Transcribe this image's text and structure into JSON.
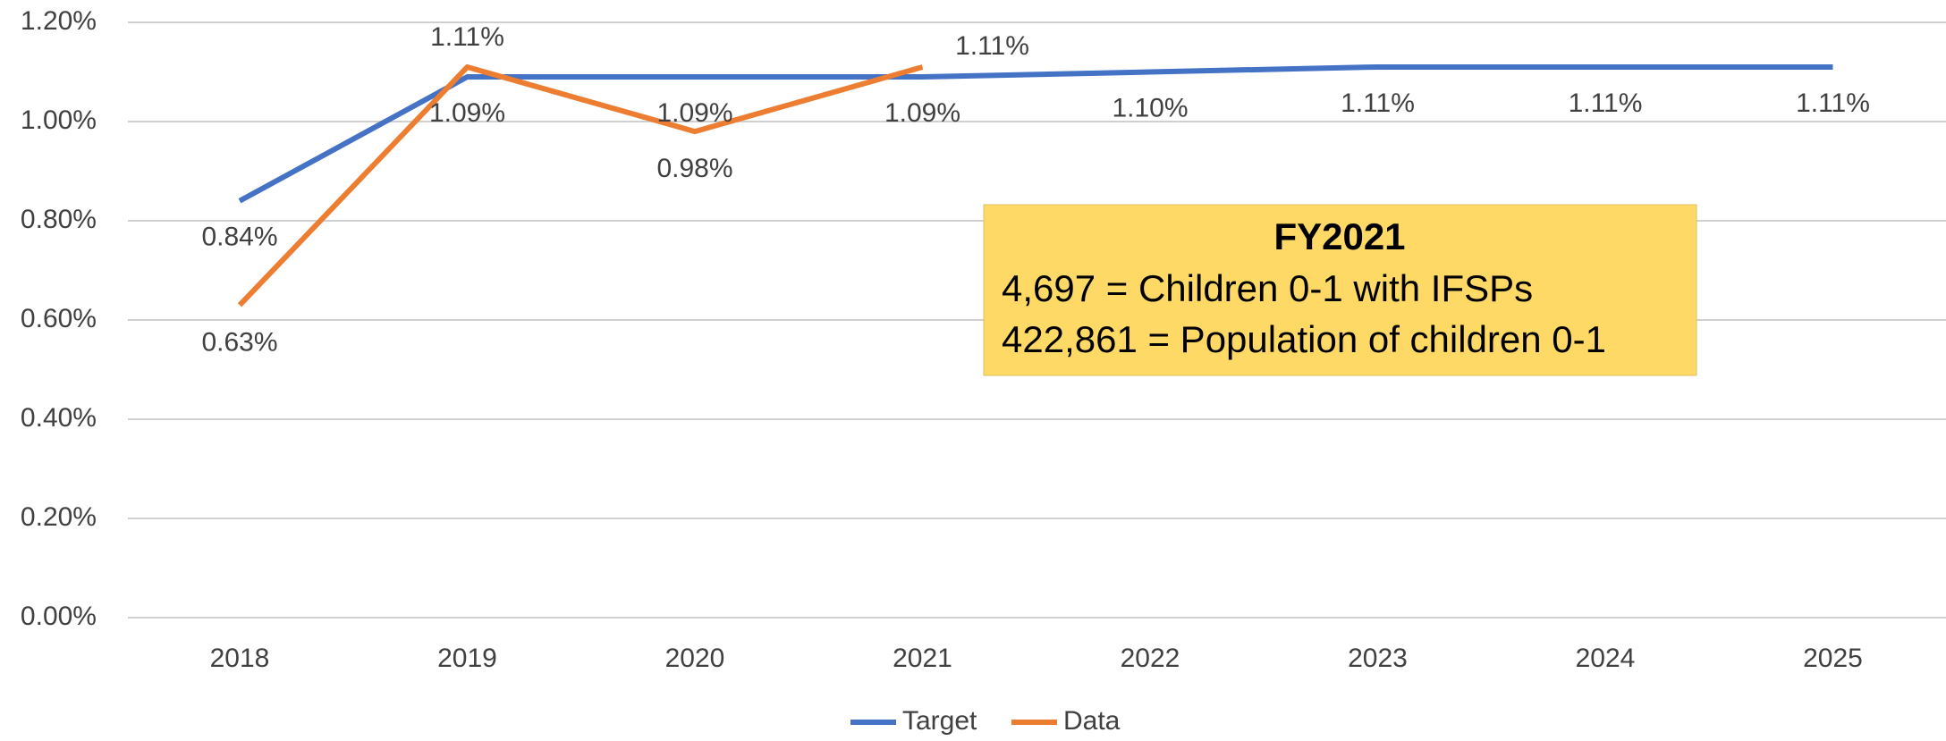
{
  "chart_data": {
    "type": "line",
    "categories": [
      "2018",
      "2019",
      "2020",
      "2021",
      "2022",
      "2023",
      "2024",
      "2025"
    ],
    "series": [
      {
        "name": "Target",
        "color": "#4472c4",
        "values": [
          0.84,
          1.09,
          1.09,
          1.09,
          1.1,
          1.11,
          1.11,
          1.11
        ],
        "value_labels": [
          "0.84%",
          "1.09%",
          "1.09%",
          "1.09%",
          "1.10%",
          "1.11%",
          "1.11%",
          "1.11%"
        ]
      },
      {
        "name": "Data",
        "color": "#ed7d31",
        "values": [
          0.63,
          1.11,
          0.98,
          1.11,
          null,
          null,
          null,
          null
        ],
        "value_labels": [
          "0.63%",
          "1.11%",
          "0.98%",
          "1.11%",
          null,
          null,
          null,
          null
        ]
      }
    ],
    "ylim": [
      0,
      1.2
    ],
    "yticks": [
      {
        "value": 0,
        "label": "0.00%"
      },
      {
        "value": 0.2,
        "label": "0.20%"
      },
      {
        "value": 0.4,
        "label": "0.40%"
      },
      {
        "value": 0.6,
        "label": "0.60%"
      },
      {
        "value": 0.8,
        "label": "0.80%"
      },
      {
        "value": 1.0,
        "label": "1.00%"
      },
      {
        "value": 1.2,
        "label": "1.20%"
      }
    ],
    "grid": true,
    "legend": "bottom",
    "annotation": {
      "title": "FY2021",
      "lines": [
        "4,697 = Children 0-1 with IFSPs",
        "422,861 = Population of children 0-1"
      ]
    }
  }
}
